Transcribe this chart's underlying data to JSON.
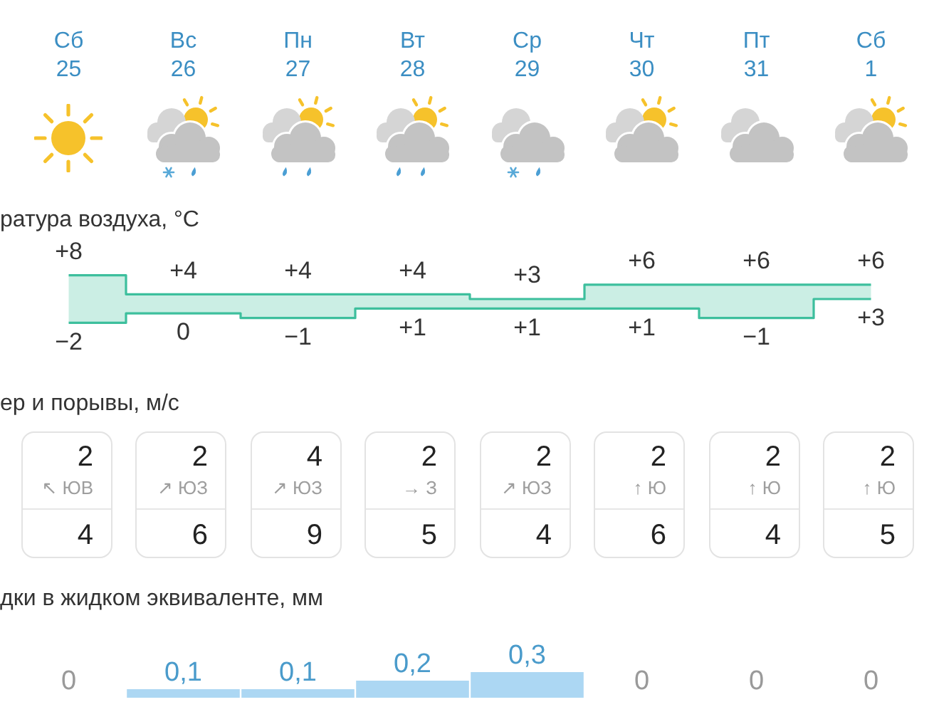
{
  "chart_data": [
    {
      "type": "step",
      "title": "ратура воздуха, °C",
      "categories": [
        "Сб\n25",
        "Вс\n26",
        "Пн\n27",
        "Вт\n28",
        "Ср\n29",
        "Чт\n30",
        "Пт\n31",
        "Сб\n1"
      ],
      "series": [
        {
          "color": "#3dbf9d",
          "values": [
            8,
            4,
            4,
            4,
            3,
            6,
            6,
            6
          ],
          "value_labels": [
            "+8",
            "+4",
            "+4",
            "+4",
            "+3",
            "+6",
            "+6",
            "+6"
          ],
          "lower": [
            -2,
            0,
            -1,
            1,
            1,
            1,
            -1,
            3
          ],
          "upper": [
            8,
            4,
            4,
            4,
            3,
            6,
            6,
            6
          ]
        },
        {
          "color": "#3dbf9d",
          "values": [
            -2,
            0,
            -1,
            1,
            1,
            1,
            -1,
            3
          ],
          "value_labels": [
            "−2",
            "0",
            "−1",
            "+1",
            "+1",
            "+1",
            "−1",
            "+3"
          ]
        }
      ],
      "tick_labels": "x"
    },
    {
      "type": "other",
      "title": "ер и порывы, м/с",
      "categories": [
        "↖ ЮВ",
        "↗ ЮЗ",
        "↗ ЮЗ",
        "→ З",
        "↗ ЮЗ",
        "↑ Ю",
        "↑ Ю",
        "↑ Ю"
      ],
      "series": [
        {
          "values": [
            2,
            2,
            4,
            2,
            2,
            2,
            2,
            2
          ]
        },
        {
          "values": [
            4,
            6,
            9,
            5,
            4,
            6,
            4,
            5
          ]
        }
      ],
      "data_labels": true
    },
    {
      "type": "bar",
      "title": "дки в жидком эквиваленте, мм",
      "categories": [
        null,
        null,
        null,
        null,
        null,
        null,
        null,
        null
      ],
      "values": [
        0,
        0.1,
        0.1,
        0.2,
        0.3,
        0,
        0,
        0
      ],
      "value_labels": [
        "0",
        "0,1",
        "0,1",
        "0,2",
        "0,3",
        "0",
        "0",
        "0"
      ],
      "color": "#acd7f3",
      "tick_labels": false
    }
  ]
}
